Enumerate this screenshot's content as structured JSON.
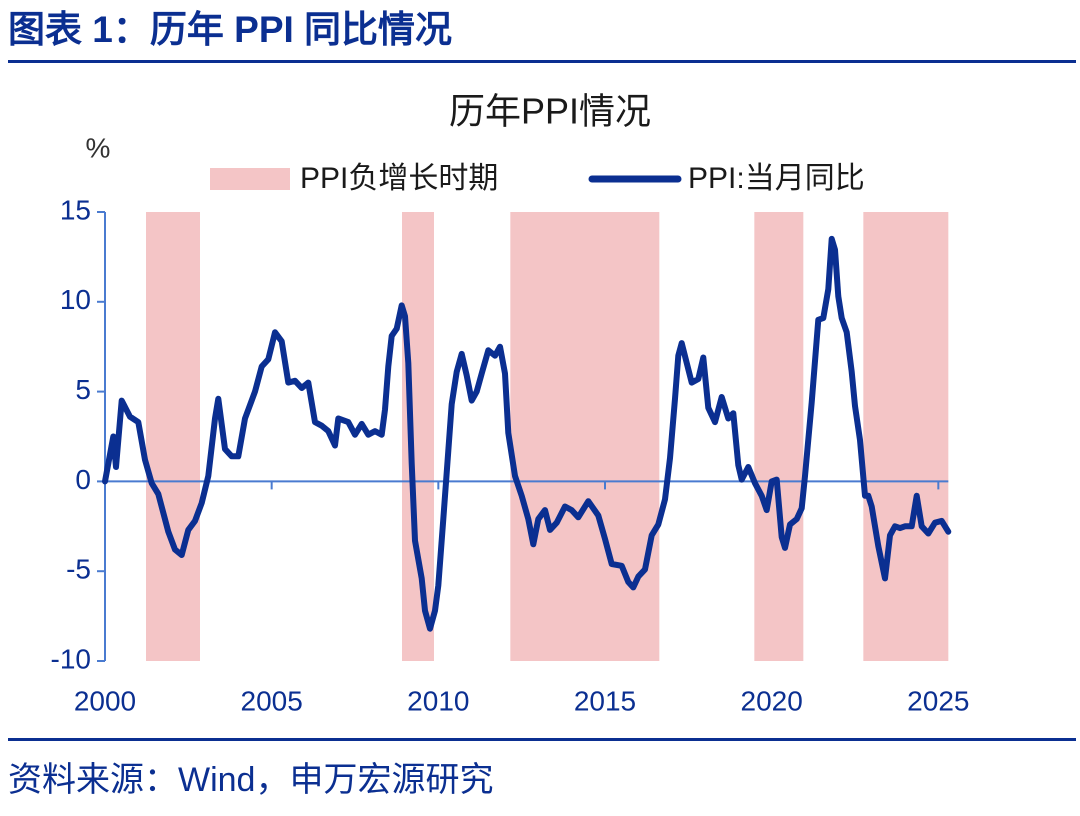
{
  "header": {
    "title": "图表 1：历年 PPI 同比情况"
  },
  "source": "资料来源：Wind，申万宏源研究",
  "chart_data": {
    "type": "line",
    "title": "历年PPI情况",
    "y_label": "%",
    "xlim": [
      2000,
      2025.5
    ],
    "xticks": [
      2000,
      2005,
      2010,
      2015,
      2020,
      2025
    ],
    "ylim": [
      -10,
      15
    ],
    "yticks": [
      -10,
      -5,
      0,
      5,
      10,
      15
    ],
    "axis_color": "#4a7bd0",
    "shaded": {
      "name": "PPI负增长时期",
      "color": "#f4c5c6",
      "ranges": [
        [
          2001.23,
          2002.85
        ],
        [
          2008.91,
          2009.87
        ],
        [
          2012.16,
          2016.63
        ],
        [
          2019.48,
          2020.95
        ],
        [
          2022.75,
          2025.3
        ]
      ]
    },
    "x": [
      2000.0,
      2000.25,
      2000.33,
      2000.5,
      2000.75,
      2001.0,
      2001.2,
      2001.4,
      2001.6,
      2001.9,
      2002.1,
      2002.3,
      2002.5,
      2002.7,
      2002.9,
      2003.1,
      2003.3,
      2003.4,
      2003.6,
      2003.8,
      2004.0,
      2004.2,
      2004.5,
      2004.7,
      2004.9,
      2005.1,
      2005.3,
      2005.5,
      2005.7,
      2005.9,
      2006.1,
      2006.3,
      2006.5,
      2006.7,
      2006.9,
      2007.0,
      2007.3,
      2007.5,
      2007.7,
      2007.9,
      2008.1,
      2008.3,
      2008.4,
      2008.5,
      2008.6,
      2008.75,
      2008.9,
      2009.0,
      2009.1,
      2009.2,
      2009.3,
      2009.5,
      2009.6,
      2009.75,
      2009.9,
      2010.0,
      2010.15,
      2010.3,
      2010.4,
      2010.55,
      2010.7,
      2010.85,
      2011.0,
      2011.15,
      2011.3,
      2011.5,
      2011.7,
      2011.85,
      2012.0,
      2012.1,
      2012.3,
      2012.5,
      2012.7,
      2012.85,
      2013.0,
      2013.2,
      2013.35,
      2013.55,
      2013.8,
      2014.0,
      2014.2,
      2014.5,
      2014.8,
      2015.0,
      2015.2,
      2015.5,
      2015.7,
      2015.85,
      2016.0,
      2016.2,
      2016.4,
      2016.6,
      2016.8,
      2016.95,
      2017.1,
      2017.2,
      2017.3,
      2017.45,
      2017.6,
      2017.8,
      2017.95,
      2018.1,
      2018.3,
      2018.5,
      2018.7,
      2018.85,
      2019.0,
      2019.1,
      2019.3,
      2019.5,
      2019.7,
      2019.85,
      2020.0,
      2020.15,
      2020.3,
      2020.4,
      2020.55,
      2020.75,
      2020.9,
      2021.0,
      2021.2,
      2021.4,
      2021.55,
      2021.7,
      2021.8,
      2021.9,
      2022.0,
      2022.1,
      2022.25,
      2022.4,
      2022.5,
      2022.65,
      2022.8,
      2022.9,
      2023.0,
      2023.2,
      2023.4,
      2023.55,
      2023.7,
      2023.85,
      2024.0,
      2024.2,
      2024.35,
      2024.5,
      2024.7,
      2024.9,
      2025.1,
      2025.3
    ],
    "series": [
      {
        "name": "PPI:当月同比",
        "color": "#0b2f91",
        "values": [
          0,
          2.5,
          0.8,
          4.5,
          3.6,
          3.3,
          1.2,
          -0.1,
          -0.7,
          -2.8,
          -3.8,
          -4.1,
          -2.7,
          -2.2,
          -1.2,
          0.3,
          3.5,
          4.6,
          1.8,
          1.4,
          1.4,
          3.5,
          5.0,
          6.4,
          6.8,
          8.3,
          7.8,
          5.5,
          5.6,
          5.2,
          5.5,
          3.3,
          3.1,
          2.8,
          2.0,
          3.5,
          3.3,
          2.6,
          3.2,
          2.6,
          2.8,
          2.6,
          4.0,
          6.4,
          8.1,
          8.5,
          9.8,
          9.2,
          6.6,
          1.0,
          -3.3,
          -5.4,
          -7.2,
          -8.2,
          -7.2,
          -5.8,
          -2.1,
          1.7,
          4.3,
          6.1,
          7.1,
          5.9,
          4.5,
          5.0,
          6.0,
          7.3,
          7.0,
          7.5,
          6.0,
          2.7,
          0.3,
          -0.8,
          -2.1,
          -3.5,
          -2.1,
          -1.6,
          -2.7,
          -2.3,
          -1.4,
          -1.6,
          -2.0,
          -1.1,
          -1.9,
          -3.2,
          -4.6,
          -4.7,
          -5.6,
          -5.9,
          -5.3,
          -4.9,
          -3.0,
          -2.4,
          -1.0,
          1.3,
          4.6,
          7.0,
          7.7,
          6.6,
          5.5,
          5.7,
          6.9,
          4.1,
          3.3,
          4.7,
          3.5,
          3.8,
          0.9,
          0.1,
          0.8,
          -0.1,
          -0.8,
          -1.6,
          0.0,
          0.1,
          -3.1,
          -3.7,
          -2.4,
          -2.1,
          -1.5,
          0.3,
          4.4,
          9.0,
          9.1,
          10.7,
          13.5,
          12.9,
          10.3,
          9.1,
          8.3,
          6.1,
          4.2,
          2.3,
          -0.8,
          -0.8,
          -1.4,
          -3.6,
          -5.4,
          -3.0,
          -2.5,
          -2.6,
          -2.5,
          -2.5,
          -0.8,
          -2.5,
          -2.9,
          -2.3,
          -2.2,
          -2.8
        ]
      }
    ]
  }
}
